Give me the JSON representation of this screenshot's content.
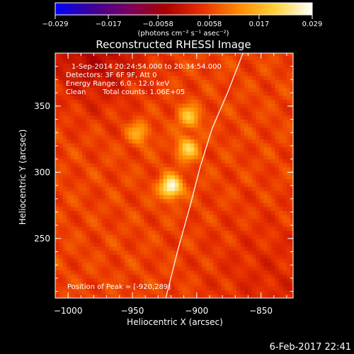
{
  "chart_data": {
    "type": "heatmap",
    "title": "Reconstructed RHESSI Image",
    "xlabel": "Heliocentric X (arcsec)",
    "ylabel": "Heliocentric Y (arcsec)",
    "xlim": [
      -1010,
      -825
    ],
    "ylim": [
      205,
      390
    ],
    "x_ticks": [
      -1000,
      -950,
      -900,
      -850
    ],
    "y_ticks": [
      250,
      300,
      350
    ],
    "x_tick_labels": [
      "−1000",
      "−950",
      "−900",
      "−850"
    ],
    "y_tick_labels": [
      "250",
      "300",
      "350"
    ],
    "colorbar": {
      "range": [
        -0.029,
        0.029
      ],
      "ticks": [
        -0.029,
        -0.017,
        -0.0058,
        0.0058,
        0.017,
        0.029
      ],
      "tick_labels": [
        "−0.029",
        "−0.017",
        "−0.0058",
        "0.0058",
        "0.017",
        "0.029"
      ],
      "units": "(photons cm⁻² s⁻¹ asec⁻²)",
      "colors": [
        "#0000ff",
        "#3d0096",
        "#7a0060",
        "#a80000",
        "#e83000",
        "#ff8a00",
        "#ffd23c",
        "#ffffff"
      ]
    },
    "sources": [
      {
        "x": -920,
        "y": 289,
        "peak": 0.029
      },
      {
        "x": -907,
        "y": 318,
        "peak": 0.021
      },
      {
        "x": -906,
        "y": 342,
        "peak": 0.019
      },
      {
        "x": -945,
        "y": 330,
        "peak": 0.016
      }
    ],
    "background_level": 0.0058,
    "limb_curve": [
      [
        -924,
        205
      ],
      [
        -915,
        240
      ],
      [
        -905,
        275
      ],
      [
        -897,
        305
      ],
      [
        -888,
        333
      ],
      [
        -876,
        360
      ],
      [
        -864,
        390
      ]
    ],
    "annotations": {
      "time": "1-Sep-2014 20:24:54.000 to 20:34:54.000",
      "detectors": "Detectors: 3F 6F 9F, Att 0",
      "energy": "Energy Range: 6.0 - 12.0 keV",
      "method": "Clean",
      "counts": "Total counts: 1.06E+05",
      "peak": "Position of Peak = [-920,289]"
    },
    "grid": false,
    "legend": "none"
  },
  "footer": {
    "date": "6-Feb-2017 22:41"
  }
}
